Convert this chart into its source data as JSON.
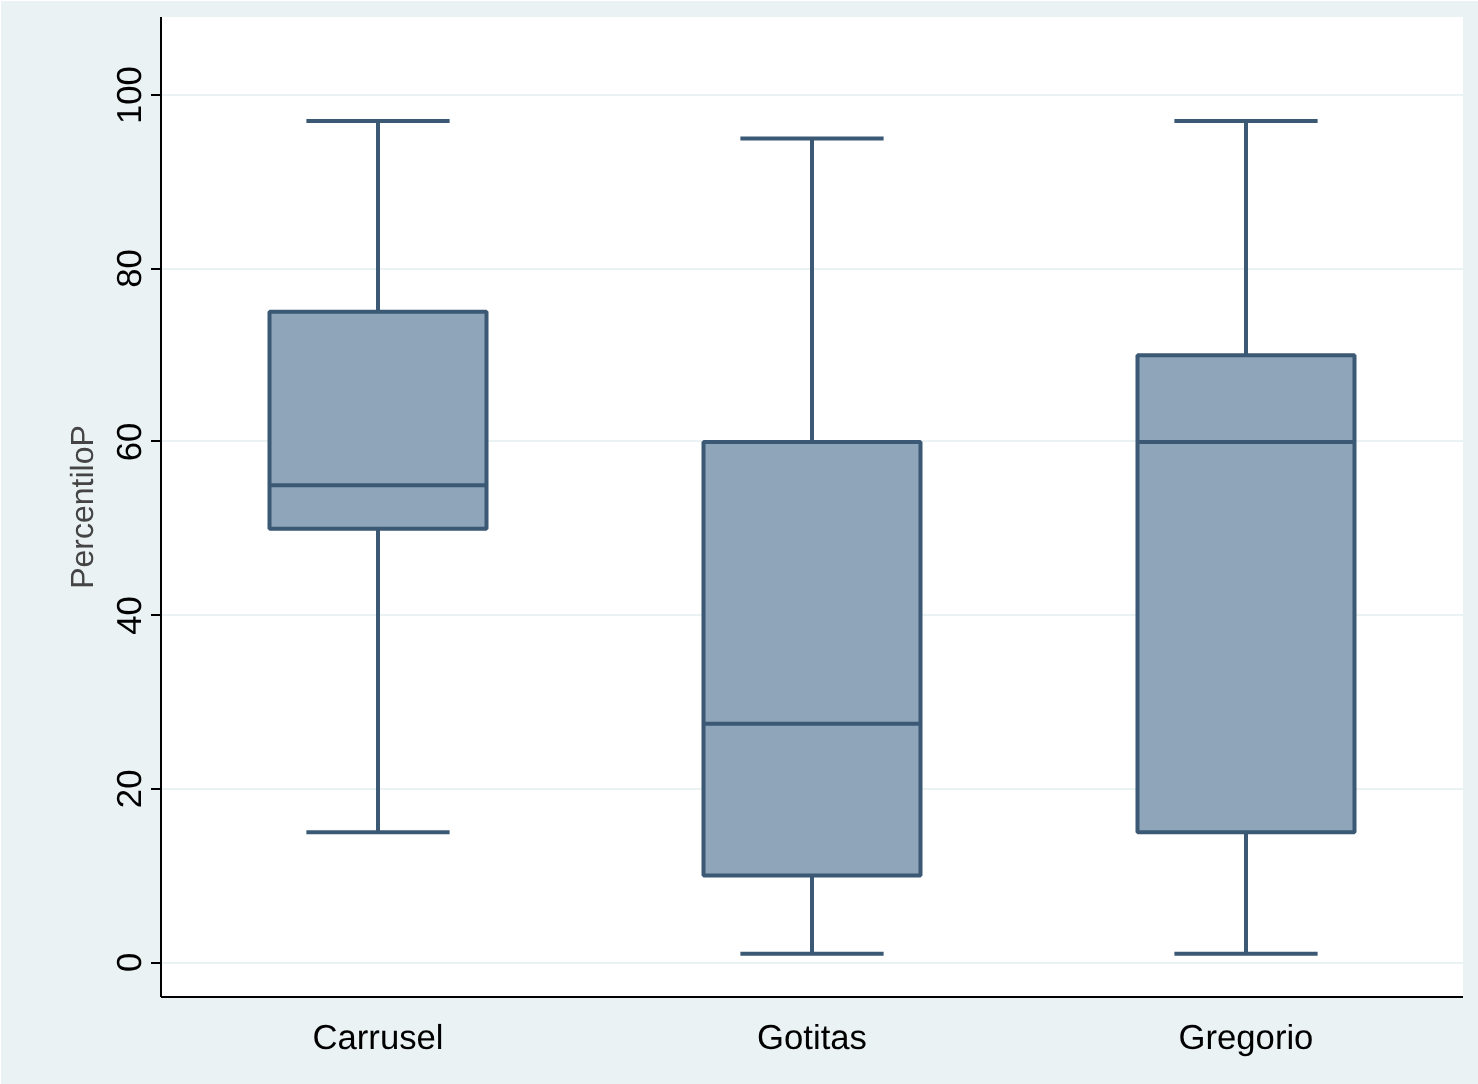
{
  "chart_data": {
    "type": "box",
    "ylabel": "PercentiloP",
    "categories": [
      "Carrusel",
      "Gotitas",
      "Gregorio"
    ],
    "boxes": [
      {
        "low": 15,
        "q1": 50,
        "median": 55,
        "q3": 75,
        "high": 97
      },
      {
        "low": 1,
        "q1": 10,
        "median": 27.5,
        "q3": 60,
        "high": 95
      },
      {
        "low": 1,
        "q1": 15,
        "median": 60,
        "q3": 70,
        "high": 97
      }
    ],
    "color": "#8fa5b9",
    "ylim": [
      -4,
      109
    ],
    "yticks": [
      0,
      20,
      40,
      60,
      80,
      100
    ],
    "grid": "y"
  }
}
